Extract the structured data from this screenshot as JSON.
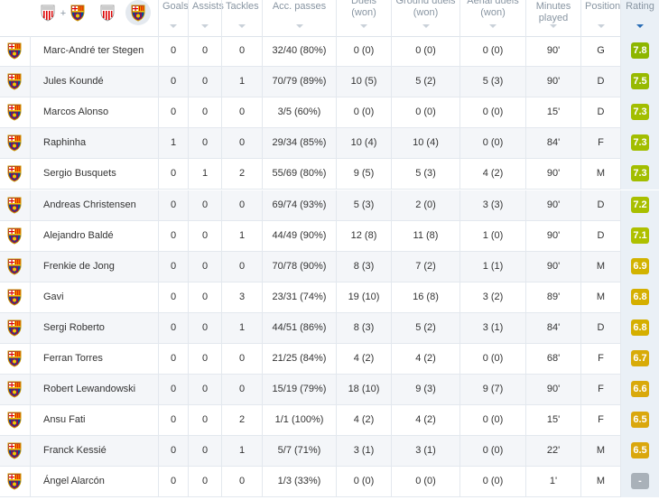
{
  "table": {
    "headers": [
      "Goals",
      "Assists",
      "Tackles",
      "Acc. passes",
      "Duels (won)",
      "Ground duels (won)",
      "Aerial duels (won)",
      "Minutes played",
      "Position",
      "Rating"
    ],
    "rows": [
      {
        "cells": [
          "Marc-André ter Stegen",
          0,
          0,
          0,
          "32/40 (80%)",
          "0 (0)",
          "0 (0)",
          "0 (0)",
          "90'",
          "G",
          7.8
        ],
        "rating_color": "#8db600"
      },
      {
        "cells": [
          "Jules Koundé",
          0,
          0,
          1,
          "70/79 (89%)",
          "10 (5)",
          "5 (2)",
          "5 (3)",
          "90'",
          "D",
          7.5
        ],
        "rating_color": "#97ba00"
      },
      {
        "cells": [
          "Marcos Alonso",
          0,
          0,
          0,
          "3/5 (60%)",
          "0 (0)",
          "0 (0)",
          "0 (0)",
          "15'",
          "D",
          7.3
        ],
        "rating_color": "#a2be00"
      },
      {
        "cells": [
          "Raphinha",
          1,
          0,
          0,
          "29/34 (85%)",
          "10 (4)",
          "10 (4)",
          "0 (0)",
          "84'",
          "F",
          7.3
        ],
        "rating_color": "#a2be00"
      },
      {
        "cells": [
          "Sergio Busquets",
          0,
          1,
          2,
          "55/69 (80%)",
          "9 (5)",
          "5 (3)",
          "4 (2)",
          "90'",
          "M",
          7.3
        ],
        "rating_color": "#a2be00"
      },
      {
        "cells": [
          "Andreas Christensen",
          0,
          0,
          0,
          "69/74 (93%)",
          "5 (3)",
          "2 (0)",
          "3 (3)",
          "90'",
          "D",
          7.2
        ],
        "rating_color": "#a8bf00"
      },
      {
        "cells": [
          "Alejandro Baldé",
          0,
          0,
          1,
          "44/49 (90%)",
          "12 (8)",
          "11 (8)",
          "1 (0)",
          "90'",
          "D",
          7.1
        ],
        "rating_color": "#aec000"
      },
      {
        "cells": [
          "Frenkie de Jong",
          0,
          0,
          0,
          "70/78 (90%)",
          "8 (3)",
          "7 (2)",
          "1 (1)",
          "90'",
          "M",
          6.9
        ],
        "rating_color": "#d2b300"
      },
      {
        "cells": [
          "Gavi",
          0,
          0,
          3,
          "23/31 (74%)",
          "19 (10)",
          "16 (8)",
          "3 (2)",
          "89'",
          "M",
          6.8
        ],
        "rating_color": "#d5af00"
      },
      {
        "cells": [
          "Sergi Roberto",
          0,
          0,
          1,
          "44/51 (86%)",
          "8 (3)",
          "5 (2)",
          "3 (1)",
          "84'",
          "D",
          6.8
        ],
        "rating_color": "#d5af00"
      },
      {
        "cells": [
          "Ferran Torres",
          0,
          0,
          0,
          "21/25 (84%)",
          "4 (2)",
          "4 (2)",
          "0 (0)",
          "68'",
          "F",
          6.7
        ],
        "rating_color": "#d8ab08"
      },
      {
        "cells": [
          "Robert Lewandowski",
          0,
          0,
          0,
          "15/19 (79%)",
          "18 (10)",
          "9 (3)",
          "9 (7)",
          "90'",
          "F",
          6.6
        ],
        "rating_color": "#d9a90b"
      },
      {
        "cells": [
          "Ansu Fati",
          0,
          0,
          2,
          "1/1 (100%)",
          "4 (2)",
          "4 (2)",
          "0 (0)",
          "15'",
          "F",
          6.5
        ],
        "rating_color": "#daa70d"
      },
      {
        "cells": [
          "Franck Kessié",
          0,
          0,
          1,
          "5/7 (71%)",
          "3 (1)",
          "3 (1)",
          "0 (0)",
          "22'",
          "M",
          6.5
        ],
        "rating_color": "#daa70d"
      },
      {
        "cells": [
          "Ángel Alarcón",
          0,
          0,
          0,
          "1/3 (33%)",
          "0 (0)",
          "0 (0)",
          "0 (0)",
          "1'",
          "M",
          "-"
        ],
        "rating_color": "#a9b1b9"
      }
    ]
  }
}
